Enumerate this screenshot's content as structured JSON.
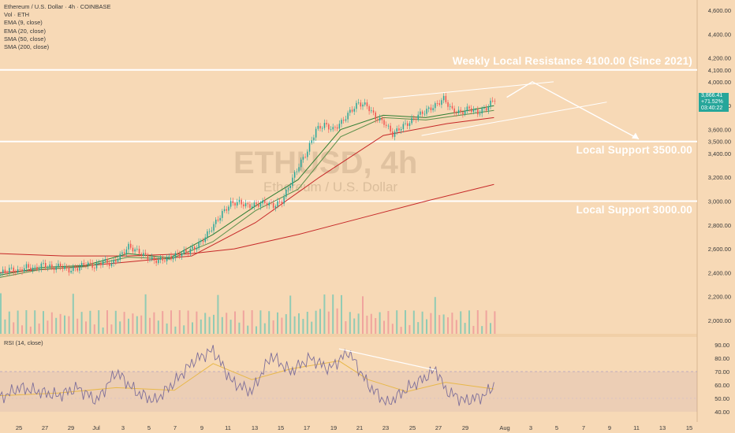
{
  "header": {
    "title": "Ethereum / U.S. Dollar · 4h · COINBASE",
    "indicators": [
      "Vol · ETH",
      "EMA (9, close)",
      "EMA (20, close)",
      "SMA (50, close)",
      "SMA (200, close)"
    ]
  },
  "watermark": {
    "symbol": "ETHUSD, 4h",
    "name": "Ethereum / U.S. Dollar"
  },
  "annotations": {
    "resistance": "Weekly Local Resistance 4100.00 (Since 2021)",
    "support1": "Local Support 3500.00",
    "support2": "Local Support 3000.00"
  },
  "price_badge": {
    "price": "3,866.41",
    "change": "+71.52%",
    "countdown": "03:40:22"
  },
  "rsi": {
    "label": "RSI (14, close)"
  },
  "colors": {
    "background": "#f7d9b6",
    "up": "#26a69a",
    "down": "#ef5350",
    "ema9": "#2e7d32",
    "ema20": "#5b8f4a",
    "sma50": "#c62828",
    "sma200": "#c62828",
    "rsi": "#7e6f9a",
    "rsi_ma": "#e8b84a",
    "levels": "#ffffff"
  },
  "chart_data": [
    {
      "type": "candlestick",
      "title": "Ethereum / U.S. Dollar · 4h · COINBASE",
      "ylim": [
        1950,
        4650
      ],
      "y_ticks": [
        "4,600.00",
        "4,400.00",
        "4,200.00",
        "4,100.00",
        "4,000.00",
        "3,800.00",
        "3,600.00",
        "3,500.00",
        "3,400.00",
        "3,200.00",
        "3,000.00",
        "2,800.00",
        "2,600.00",
        "2,400.00",
        "2,200.00",
        "2,000.00"
      ],
      "x_ticks": [
        "25",
        "27",
        "29",
        "Jul",
        "3",
        "5",
        "7",
        "9",
        "11",
        "13",
        "15",
        "17",
        "19",
        "21",
        "23",
        "25",
        "27",
        "29",
        "Aug",
        "3",
        "5",
        "7",
        "9",
        "11",
        "13",
        "15"
      ],
      "horizontal_levels": [
        4100,
        3500,
        3000
      ],
      "close_path": [
        [
          0,
          2395
        ],
        [
          4,
          2430
        ],
        [
          8,
          2410
        ],
        [
          12,
          2450
        ],
        [
          16,
          2430
        ],
        [
          20,
          2470
        ],
        [
          24,
          2440
        ],
        [
          28,
          2460
        ],
        [
          32,
          2420
        ],
        [
          36,
          2440
        ],
        [
          40,
          2480
        ],
        [
          44,
          2450
        ],
        [
          48,
          2500
        ],
        [
          52,
          2470
        ],
        [
          56,
          2540
        ],
        [
          60,
          2620
        ],
        [
          64,
          2580
        ],
        [
          68,
          2540
        ],
        [
          72,
          2500
        ],
        [
          76,
          2510
        ],
        [
          80,
          2530
        ],
        [
          84,
          2560
        ],
        [
          88,
          2580
        ],
        [
          92,
          2620
        ],
        [
          96,
          2700
        ],
        [
          100,
          2800
        ],
        [
          104,
          2900
        ],
        [
          108,
          2980
        ],
        [
          112,
          2990
        ],
        [
          116,
          2960
        ],
        [
          120,
          2970
        ],
        [
          124,
          2990
        ],
        [
          128,
          2960
        ],
        [
          132,
          3000
        ],
        [
          136,
          3150
        ],
        [
          140,
          3300
        ],
        [
          144,
          3420
        ],
        [
          148,
          3600
        ],
        [
          152,
          3640
        ],
        [
          156,
          3600
        ],
        [
          160,
          3660
        ],
        [
          164,
          3750
        ],
        [
          168,
          3820
        ],
        [
          172,
          3800
        ],
        [
          176,
          3700
        ],
        [
          180,
          3660
        ],
        [
          184,
          3560
        ],
        [
          188,
          3620
        ],
        [
          192,
          3660
        ],
        [
          196,
          3720
        ],
        [
          200,
          3760
        ],
        [
          204,
          3800
        ],
        [
          208,
          3860
        ],
        [
          212,
          3760
        ],
        [
          216,
          3740
        ],
        [
          220,
          3780
        ],
        [
          224,
          3740
        ],
        [
          228,
          3780
        ],
        [
          232,
          3860
        ]
      ],
      "ema9_path": [
        [
          0,
          2380
        ],
        [
          20,
          2445
        ],
        [
          40,
          2460
        ],
        [
          60,
          2560
        ],
        [
          80,
          2525
        ],
        [
          100,
          2720
        ],
        [
          120,
          2960
        ],
        [
          140,
          3180
        ],
        [
          160,
          3600
        ],
        [
          180,
          3720
        ],
        [
          200,
          3700
        ],
        [
          220,
          3760
        ],
        [
          232,
          3800
        ]
      ],
      "ema20_path": [
        [
          0,
          2360
        ],
        [
          20,
          2430
        ],
        [
          40,
          2450
        ],
        [
          60,
          2530
        ],
        [
          80,
          2515
        ],
        [
          100,
          2660
        ],
        [
          120,
          2920
        ],
        [
          140,
          3100
        ],
        [
          160,
          3540
        ],
        [
          180,
          3700
        ],
        [
          200,
          3680
        ],
        [
          220,
          3730
        ],
        [
          232,
          3760
        ]
      ],
      "sma50_path": [
        [
          0,
          2400
        ],
        [
          30,
          2440
        ],
        [
          60,
          2490
        ],
        [
          90,
          2540
        ],
        [
          120,
          2820
        ],
        [
          150,
          3200
        ],
        [
          180,
          3550
        ],
        [
          210,
          3650
        ],
        [
          232,
          3700
        ]
      ],
      "sma200_path": [
        [
          0,
          2560
        ],
        [
          30,
          2540
        ],
        [
          60,
          2540
        ],
        [
          90,
          2560
        ],
        [
          110,
          2600
        ],
        [
          140,
          2720
        ],
        [
          170,
          2860
        ],
        [
          200,
          3000
        ],
        [
          232,
          3140
        ]
      ],
      "channel": {
        "upper": [
          [
            180,
            3860
          ],
          [
            260,
            4000
          ]
        ],
        "lower": [
          [
            198,
            3550
          ],
          [
            285,
            3830
          ]
        ]
      },
      "projection": [
        [
          238,
          3870
        ],
        [
          250,
          4000
        ],
        [
          300,
          3520
        ]
      ]
    },
    {
      "type": "line",
      "title": "RSI (14, close)",
      "ylim": [
        33,
        95
      ],
      "y_ticks": [
        "90.00",
        "80.00",
        "70.00",
        "60.00",
        "50.00",
        "40.00"
      ],
      "bands": [
        30,
        70
      ],
      "rsi_path": [
        [
          0,
          50
        ],
        [
          10,
          58
        ],
        [
          20,
          55
        ],
        [
          30,
          52
        ],
        [
          40,
          58
        ],
        [
          50,
          48
        ],
        [
          60,
          70
        ],
        [
          70,
          55
        ],
        [
          80,
          48
        ],
        [
          90,
          62
        ],
        [
          100,
          78
        ],
        [
          110,
          86
        ],
        [
          120,
          62
        ],
        [
          130,
          55
        ],
        [
          140,
          82
        ],
        [
          150,
          70
        ],
        [
          160,
          80
        ],
        [
          170,
          72
        ],
        [
          180,
          85
        ],
        [
          190,
          60
        ],
        [
          200,
          46
        ],
        [
          210,
          57
        ],
        [
          220,
          66
        ],
        [
          225,
          72
        ],
        [
          230,
          56
        ],
        [
          240,
          48
        ],
        [
          250,
          52
        ],
        [
          255,
          60
        ]
      ],
      "rsi_ma_path": [
        [
          0,
          52
        ],
        [
          30,
          54
        ],
        [
          60,
          58
        ],
        [
          90,
          56
        ],
        [
          110,
          76
        ],
        [
          130,
          64
        ],
        [
          150,
          72
        ],
        [
          175,
          78
        ],
        [
          190,
          64
        ],
        [
          210,
          55
        ],
        [
          230,
          62
        ],
        [
          255,
          57
        ]
      ],
      "divergence_line": [
        [
          175,
          87
        ],
        [
          225,
          71
        ]
      ]
    }
  ]
}
